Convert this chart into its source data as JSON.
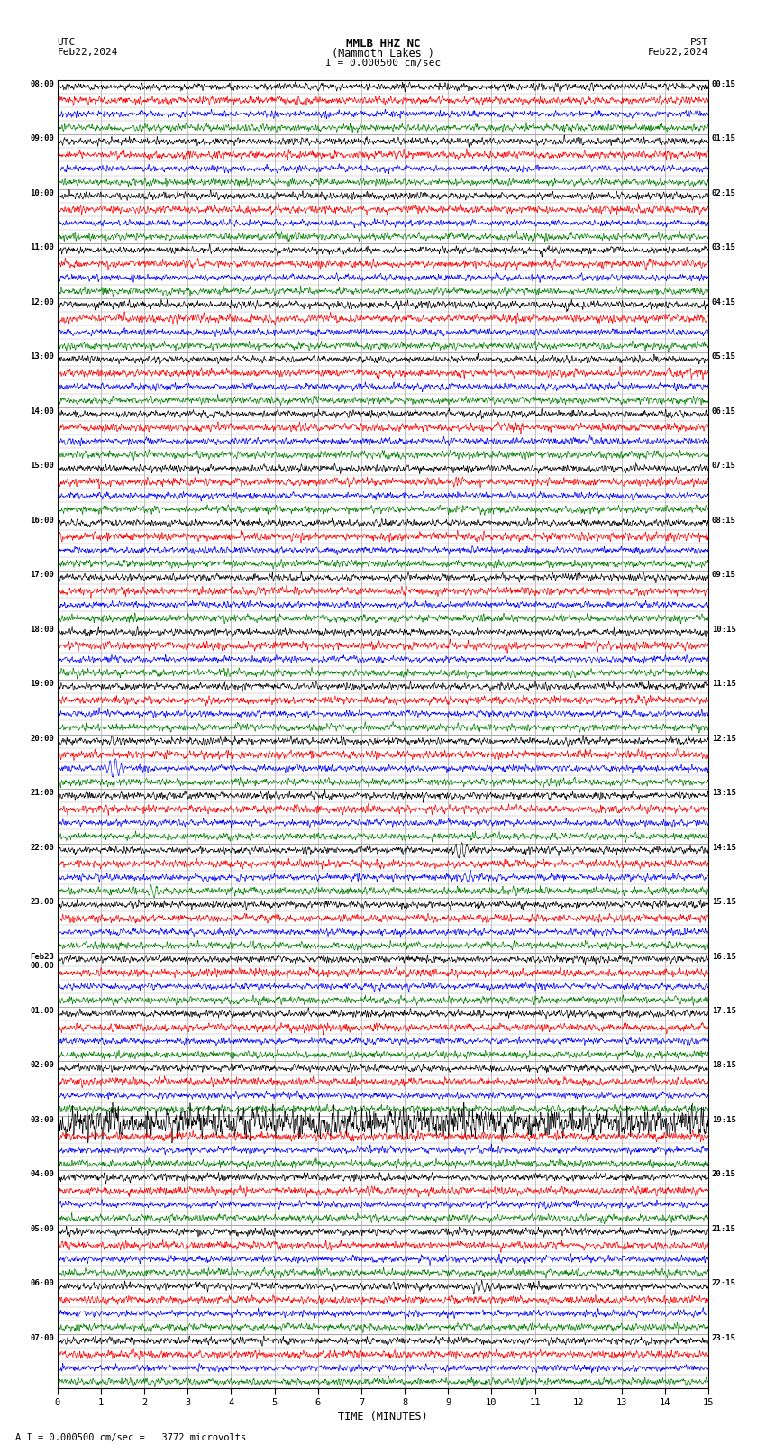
{
  "title_line1": "MMLB HHZ NC",
  "title_line2": "(Mammoth Lakes )",
  "title_scale": "I = 0.000500 cm/sec",
  "label_utc": "UTC",
  "label_pst": "PST",
  "date_left": "Feb22,2024",
  "date_right": "Feb22,2024",
  "xlabel": "TIME (MINUTES)",
  "footer": "A I = 0.000500 cm/sec =   3772 microvolts",
  "utc_times": [
    "08:00",
    "09:00",
    "10:00",
    "11:00",
    "12:00",
    "13:00",
    "14:00",
    "15:00",
    "16:00",
    "17:00",
    "18:00",
    "19:00",
    "20:00",
    "21:00",
    "22:00",
    "23:00",
    "Feb23\n00:00",
    "01:00",
    "02:00",
    "03:00",
    "04:00",
    "05:00",
    "06:00",
    "07:00"
  ],
  "pst_times": [
    "00:15",
    "01:15",
    "02:15",
    "03:15",
    "04:15",
    "05:15",
    "06:15",
    "07:15",
    "08:15",
    "09:15",
    "10:15",
    "11:15",
    "12:15",
    "13:15",
    "14:15",
    "15:15",
    "16:15",
    "17:15",
    "18:15",
    "19:15",
    "20:15",
    "21:15",
    "22:15",
    "23:15"
  ],
  "n_hours": 24,
  "traces_per_hour": 4,
  "colors": [
    "black",
    "red",
    "blue",
    "green"
  ],
  "fig_width": 8.5,
  "fig_height": 16.13,
  "bg_color": "white",
  "grid_color": "#aaaaaa",
  "line_width": 0.45,
  "amp": 0.28,
  "xmin": 0,
  "xmax": 15,
  "xticks": [
    0,
    1,
    2,
    3,
    4,
    5,
    6,
    7,
    8,
    9,
    10,
    11,
    12,
    13,
    14,
    15
  ],
  "n_samples": 2700
}
